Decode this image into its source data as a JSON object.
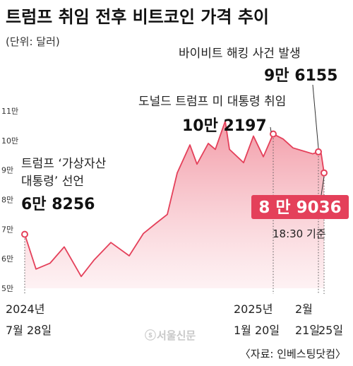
{
  "header": {
    "title": "트럼프 취임 전후 비트코인 가격 추이",
    "unit": "(단위: 달러)",
    "source": "〈자료: 인베스팅닷컴〉",
    "watermark": "서울신문"
  },
  "colors": {
    "line": "#e4405a",
    "fill_top": "#f08a98",
    "fill_bottom": "#fde9ec",
    "text": "#222222",
    "grid": "#aaaaaa"
  },
  "chart_data": {
    "type": "area",
    "title": "트럼프 취임 전후 비트코인 가격 추이",
    "ylabel": "",
    "xlabel": "",
    "y_unit": "달러",
    "ylim": [
      50000,
      110000
    ],
    "y_ticks": [
      {
        "value": 50000,
        "label": "5만"
      },
      {
        "value": 60000,
        "label": "6만"
      },
      {
        "value": 70000,
        "label": "7만"
      },
      {
        "value": 80000,
        "label": "8만"
      },
      {
        "value": 90000,
        "label": "9만"
      },
      {
        "value": 100000,
        "label": "10만"
      },
      {
        "value": 110000,
        "label": "11만"
      }
    ],
    "x_labels": [
      {
        "date": "2024-07-28",
        "lines": [
          "2024년",
          "7월 28일"
        ]
      },
      {
        "date": "2025-01-20",
        "lines": [
          "2025년",
          "1월 20일"
        ]
      },
      {
        "date": "2025-02-21",
        "lines": [
          "2월",
          "21일"
        ]
      },
      {
        "date": "2025-02-25",
        "lines": [
          "25일"
        ]
      }
    ],
    "series": [
      {
        "values": [
          {
            "x": "2024-07-28",
            "y": 68256
          },
          {
            "x": "2024-08-05",
            "y": 56500
          },
          {
            "x": "2024-08-15",
            "y": 58500
          },
          {
            "x": "2024-08-25",
            "y": 64000
          },
          {
            "x": "2024-09-06",
            "y": 54000
          },
          {
            "x": "2024-09-15",
            "y": 59500
          },
          {
            "x": "2024-09-27",
            "y": 65500
          },
          {
            "x": "2024-10-10",
            "y": 61000
          },
          {
            "x": "2024-10-20",
            "y": 68500
          },
          {
            "x": "2024-10-29",
            "y": 72000
          },
          {
            "x": "2024-11-06",
            "y": 75000
          },
          {
            "x": "2024-11-13",
            "y": 89000
          },
          {
            "x": "2024-11-22",
            "y": 98500
          },
          {
            "x": "2024-11-27",
            "y": 92000
          },
          {
            "x": "2024-12-05",
            "y": 99000
          },
          {
            "x": "2024-12-10",
            "y": 97000
          },
          {
            "x": "2024-12-17",
            "y": 106500
          },
          {
            "x": "2024-12-20",
            "y": 97000
          },
          {
            "x": "2024-12-30",
            "y": 92500
          },
          {
            "x": "2025-01-06",
            "y": 101500
          },
          {
            "x": "2025-01-13",
            "y": 94500
          },
          {
            "x": "2025-01-20",
            "y": 102197
          },
          {
            "x": "2025-01-27",
            "y": 100500
          },
          {
            "x": "2025-02-03",
            "y": 97500
          },
          {
            "x": "2025-02-10",
            "y": 96500
          },
          {
            "x": "2025-02-17",
            "y": 95500
          },
          {
            "x": "2025-02-21",
            "y": 96155
          },
          {
            "x": "2025-02-23",
            "y": 95500
          },
          {
            "x": "2025-02-25",
            "y": 89036
          }
        ]
      }
    ],
    "annotations": [
      {
        "date": "2024-07-28",
        "value": 68256,
        "text_lines": [
          "트럼프 ‘가상자산",
          "대통령’ 선언"
        ],
        "value_label": "6만 8256"
      },
      {
        "date": "2025-01-20",
        "value": 102197,
        "text_lines": [
          "도널드 트럼프 미 대통령 취임"
        ],
        "value_label": "10만 2197"
      },
      {
        "date": "2025-02-21",
        "value": 96155,
        "text_lines": [
          "바이비트 해킹 사건 발생"
        ],
        "value_label": "9만 6155"
      },
      {
        "date": "2025-02-25",
        "value": 89036,
        "value_label": "8 만 9036",
        "note": "18:30 기준"
      }
    ],
    "grid": false,
    "legend": "none"
  }
}
